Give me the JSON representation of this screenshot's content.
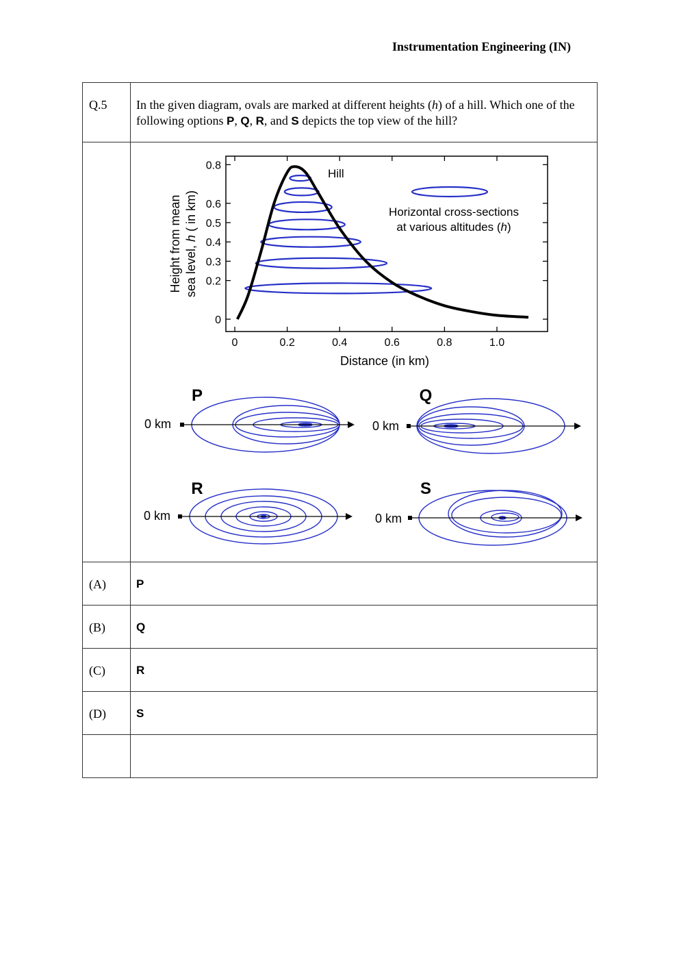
{
  "header": {
    "title": "Instrumentation Engineering (IN)"
  },
  "question": {
    "number": "Q.5",
    "text_1": "In the given diagram, ovals are marked at different heights (",
    "h": "h",
    "text_2": ") of a hill. Which one of the following options ",
    "P": "P",
    "sep1": ", ",
    "Q": "Q",
    "sep2": ", ",
    "R": "R",
    "sep3": ", and ",
    "S": "S",
    "text_3": " depicts the top view of the hill?"
  },
  "figure": {
    "chart_data": {
      "type": "line",
      "xlabel": "Distance (in km)",
      "ylabel_line1": "Height from mean",
      "ylabel_line2": "sea level, h ( in km)",
      "xlim": [
        -0.05,
        1.2
      ],
      "ylim": [
        -0.04,
        0.84
      ],
      "x_ticks": [
        "0",
        "0.2",
        "0.4",
        "0.6",
        "0.8",
        "1.0"
      ],
      "y_ticks": [
        "0",
        "0.2",
        "0.3",
        "0.4",
        "0.5",
        "0.6",
        "0.8"
      ],
      "series": [
        {
          "name": "Hill",
          "x": [
            0.01,
            0.05,
            0.1,
            0.15,
            0.2,
            0.23,
            0.27,
            0.32,
            0.4,
            0.5,
            0.6,
            0.7,
            0.8,
            0.9,
            1.0,
            1.12
          ],
          "y": [
            0.0,
            0.12,
            0.35,
            0.6,
            0.76,
            0.79,
            0.76,
            0.65,
            0.47,
            0.3,
            0.19,
            0.12,
            0.07,
            0.04,
            0.02,
            0.01
          ]
        }
      ],
      "cross_sections": [
        {
          "h": 0.16,
          "x_min": 0.04,
          "x_max": 0.75
        },
        {
          "h": 0.29,
          "x_min": 0.08,
          "x_max": 0.58
        },
        {
          "h": 0.4,
          "x_min": 0.1,
          "x_max": 0.48
        },
        {
          "h": 0.49,
          "x_min": 0.13,
          "x_max": 0.42
        },
        {
          "h": 0.58,
          "x_min": 0.15,
          "x_max": 0.37
        },
        {
          "h": 0.66,
          "x_min": 0.19,
          "x_max": 0.32
        },
        {
          "h": 0.73,
          "x_min": 0.21,
          "x_max": 0.29
        }
      ],
      "hill_label": "Hill",
      "legend_line1": "Horizontal cross-sections",
      "legend_line2": "at various altitudes (h)"
    },
    "options": {
      "P": {
        "label": "P",
        "zero": "0 km"
      },
      "Q": {
        "label": "Q",
        "zero": "0 km"
      },
      "R": {
        "label": "R",
        "zero": "0 km"
      },
      "S": {
        "label": "S",
        "zero": "0 km"
      }
    },
    "colors": {
      "oval": "#2630c8",
      "curve": "#000000"
    }
  },
  "answers": [
    {
      "label": "(A)",
      "value": "P"
    },
    {
      "label": "(B)",
      "value": "Q"
    },
    {
      "label": "(C)",
      "value": "R"
    },
    {
      "label": "(D)",
      "value": "S"
    }
  ]
}
